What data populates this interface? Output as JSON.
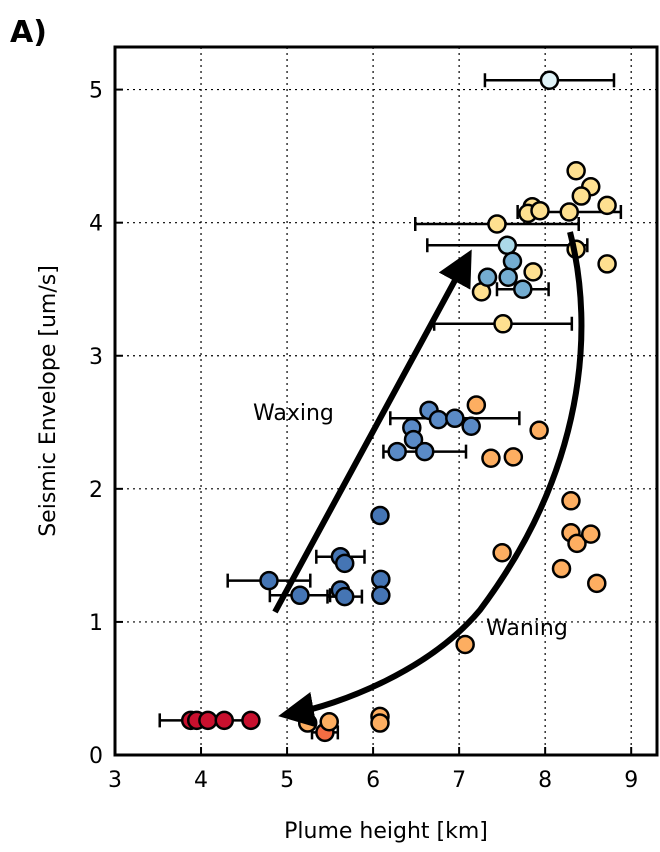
{
  "chart_data": {
    "type": "scatter",
    "panel_label": "A)",
    "xlabel": "Plume height [km]",
    "ylabel": "Seismic Envelope [um/s]",
    "xlim": [
      3,
      9.3
    ],
    "ylim": [
      0,
      5.32
    ],
    "xticks": [
      3,
      4,
      5,
      6,
      7,
      8,
      9
    ],
    "yticks": [
      0,
      1,
      2,
      3,
      4,
      5
    ],
    "grid": true,
    "annotations": [
      "Waxing",
      "Waning"
    ],
    "series": [
      {
        "color": "#c8102e",
        "x": [
          3.88,
          3.95,
          4.08,
          4.27,
          4.58
        ],
        "values": [
          0.26,
          0.26,
          0.26,
          0.26,
          0.26
        ],
        "xerr": [
          null,
          null,
          0.56,
          null,
          null
        ]
      },
      {
        "color": "#f46d43",
        "x": [
          5.44
        ],
        "values": [
          0.17
        ],
        "xerr": [
          0.15
        ]
      },
      {
        "color": "#fdae61",
        "x": [
          5.24,
          5.49,
          6.08,
          6.08,
          7.07,
          7.5,
          8.3,
          8.3,
          8.37,
          8.53,
          8.19,
          8.6,
          7.37,
          7.63,
          7.2,
          7.93
        ],
        "values": [
          0.24,
          0.25,
          0.29,
          0.24,
          0.83,
          1.52,
          1.91,
          1.67,
          1.59,
          1.66,
          1.4,
          1.29,
          2.23,
          2.24,
          2.63,
          2.44
        ],
        "xerr": [
          null,
          null,
          null,
          null,
          null,
          null,
          null,
          null,
          null,
          null,
          null,
          null,
          null,
          null,
          null,
          null
        ]
      },
      {
        "color": "#fee090",
        "x": [
          8.36,
          8.53,
          8.42,
          8.72,
          7.85,
          7.8,
          7.94,
          8.28,
          7.44,
          8.36,
          8.72,
          7.86,
          7.26,
          7.51
        ],
        "values": [
          4.39,
          4.27,
          4.2,
          4.13,
          4.12,
          4.07,
          4.09,
          4.08,
          3.99,
          3.8,
          3.69,
          3.63,
          3.48,
          3.24
        ],
        "xerr": [
          null,
          null,
          null,
          null,
          null,
          null,
          null,
          0.6,
          0.95,
          null,
          null,
          null,
          null,
          0.8
        ]
      },
      {
        "color": "#e0f3f8",
        "x": [
          8.05
        ],
        "values": [
          5.07
        ],
        "xerr": [
          0.75
        ]
      },
      {
        "color": "#abd9e9",
        "x": [
          7.56
        ],
        "values": [
          3.83
        ],
        "xerr": [
          0.93
        ]
      },
      {
        "color": "#74add1",
        "x": [
          7.62,
          7.33,
          7.57,
          7.74
        ],
        "values": [
          3.71,
          3.59,
          3.59,
          3.5
        ],
        "xerr": [
          null,
          null,
          null,
          0.3
        ]
      },
      {
        "color": "#5a8ac6",
        "x": [
          6.65,
          6.45,
          6.76,
          6.95,
          7.14,
          6.47,
          6.28,
          6.6
        ],
        "values": [
          2.59,
          2.46,
          2.52,
          2.53,
          2.47,
          2.37,
          2.28,
          2.28
        ],
        "xerr": [
          null,
          null,
          null,
          0.75,
          null,
          null,
          null,
          0.48
        ]
      },
      {
        "color": "#4575b4",
        "x": [
          6.08,
          5.62,
          5.67,
          6.09,
          5.62,
          5.67,
          6.09,
          4.79,
          5.15
        ],
        "values": [
          1.8,
          1.49,
          1.44,
          1.32,
          1.24,
          1.19,
          1.2,
          1.31,
          1.2
        ],
        "xerr": [
          null,
          0.28,
          null,
          null,
          null,
          0.2,
          null,
          0.48,
          0.35
        ]
      }
    ]
  }
}
